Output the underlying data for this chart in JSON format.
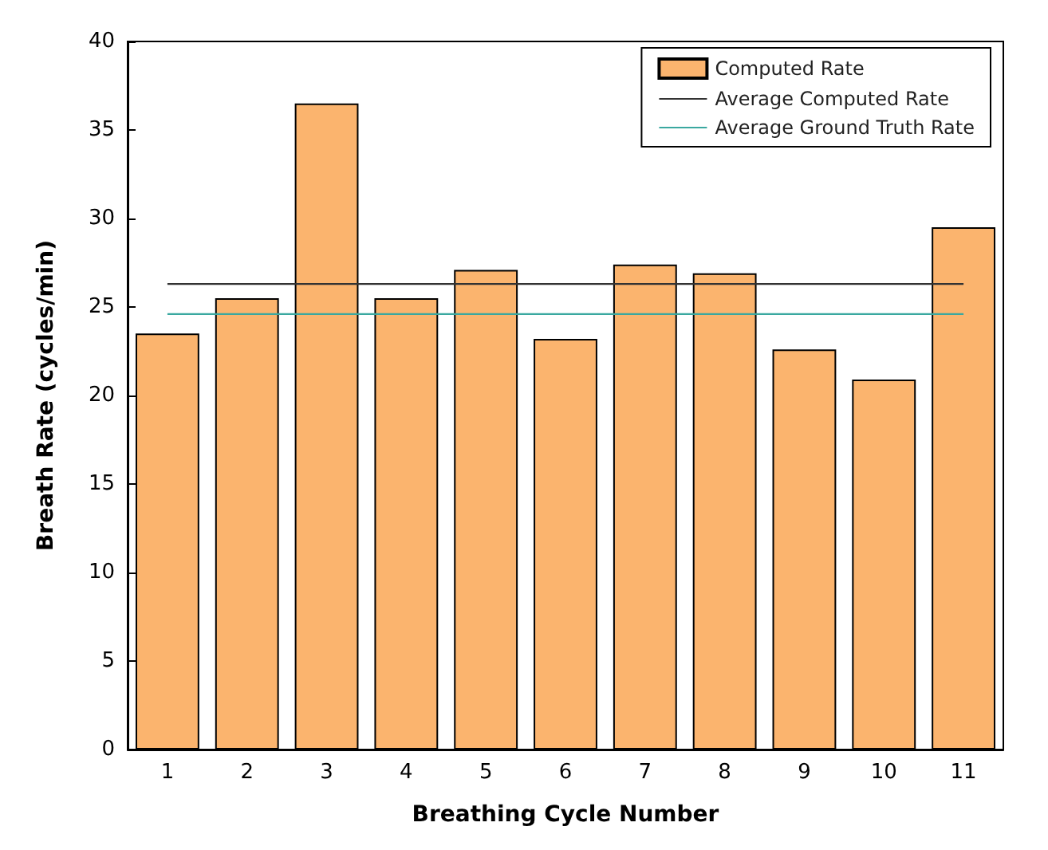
{
  "chart_data": {
    "type": "bar",
    "xlabel": "Breathing Cycle Number",
    "ylabel": "Breath Rate (cycles/min)",
    "categories": [
      "1",
      "2",
      "3",
      "4",
      "5",
      "6",
      "7",
      "8",
      "9",
      "10",
      "11"
    ],
    "series": [
      {
        "name": "Computed Rate",
        "color": "#fbb46e",
        "values": [
          23.5,
          25.5,
          36.5,
          25.5,
          27.1,
          23.2,
          27.4,
          26.9,
          22.6,
          20.9,
          29.5
        ]
      },
      {
        "name": "Average Computed Rate",
        "type": "line",
        "color": "#333333",
        "values": [
          26.3,
          26.3,
          26.3,
          26.3,
          26.3,
          26.3,
          26.3,
          26.3,
          26.3,
          26.3,
          26.3
        ]
      },
      {
        "name": "Average Ground Truth Rate",
        "type": "line",
        "color": "#3aa8a0",
        "values": [
          24.6,
          24.6,
          24.6,
          24.6,
          24.6,
          24.6,
          24.6,
          24.6,
          24.6,
          24.6,
          24.6
        ]
      }
    ],
    "ylim": [
      0,
      40
    ],
    "yticks": [
      0,
      5,
      10,
      15,
      20,
      25,
      30,
      35,
      40
    ],
    "grid": false,
    "legend": "top right",
    "marker": "none",
    "line_style": "solid"
  }
}
